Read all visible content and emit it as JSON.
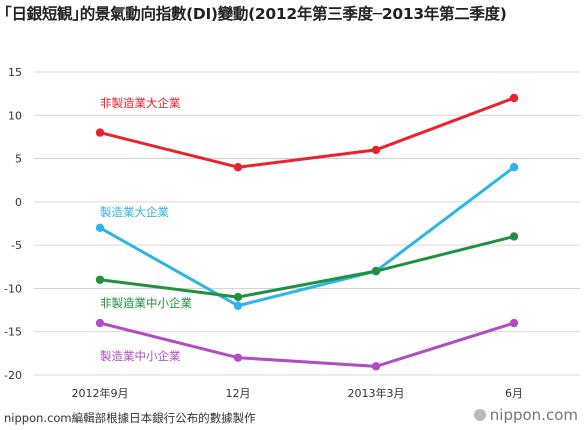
{
  "title": "｢日銀短観｣的景氣動向指數(DI)變動(2012年第三季度─2013年第二季度)",
  "footer": {
    "source": "nippon.com編輯部根據日本銀行公布的數據製作",
    "brand": "nippon.com"
  },
  "colors": {
    "grid": "#cccccc",
    "axis_text": "#333333"
  },
  "chart_data": {
    "type": "line",
    "title": "｢日銀短観｣的景氣動向指數(DI)變動(2012年第三季度─2013年第二季度)",
    "categories": [
      "2012年9月",
      "12月",
      "2013年3月",
      "6月"
    ],
    "yticks": [
      15,
      10,
      5,
      0,
      -5,
      -10,
      -15,
      -20
    ],
    "ylim": [
      -20,
      15
    ],
    "grid": true,
    "series": [
      {
        "name": "非製造業大企業",
        "color": "#e8232a",
        "values": [
          8,
          4,
          6,
          12
        ]
      },
      {
        "name": "製造業大企業",
        "color": "#2eb4e8",
        "values": [
          -3,
          -12,
          -8,
          4
        ]
      },
      {
        "name": "非製造業中小企業",
        "color": "#1f9140",
        "values": [
          -9,
          -11,
          -8,
          -4
        ]
      },
      {
        "name": "製造業中小企業",
        "color": "#b24cc4",
        "values": [
          -14,
          -18,
          -19,
          -14
        ]
      }
    ]
  }
}
